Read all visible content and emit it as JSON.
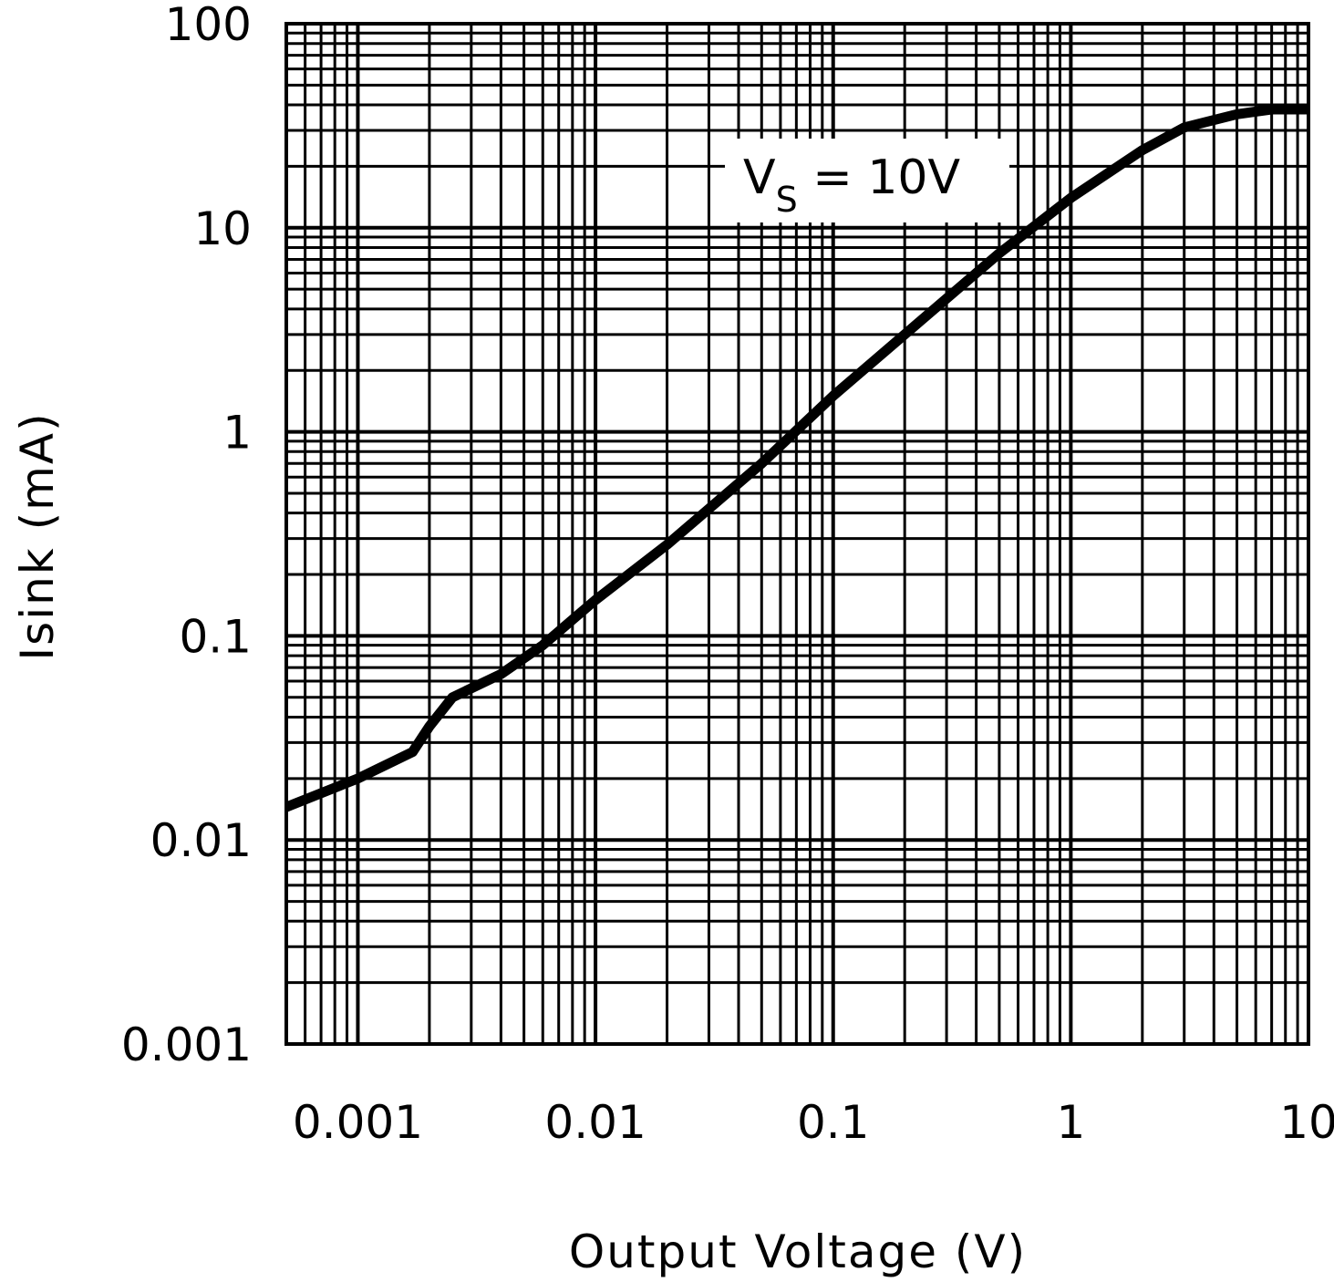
{
  "chart_data": {
    "type": "line",
    "xlabel": "Output Voltage (V)",
    "ylabel": "Isink (mA)",
    "x_scale": "log",
    "y_scale": "log",
    "xlim": [
      0.0005,
      10
    ],
    "ylim": [
      0.001,
      100
    ],
    "grid": true,
    "x_ticks": [
      "0.001",
      "0.01",
      "0.1",
      "1",
      "10"
    ],
    "y_ticks": [
      "0.001",
      "0.01",
      "0.1",
      "1",
      "10",
      "100"
    ],
    "annotation": {
      "main": "V",
      "subscript": "S",
      "rest": " = 10V"
    },
    "colors": {
      "line": "#000000",
      "grid": "#000000",
      "background": "#ffffff"
    },
    "series": [
      {
        "x": [
          0.0005,
          0.001,
          0.0017,
          0.002,
          0.0025,
          0.004,
          0.006,
          0.01,
          0.02,
          0.05,
          0.1,
          0.2,
          0.5,
          1,
          2,
          3,
          5,
          7,
          10
        ],
        "y": [
          0.0145,
          0.02,
          0.027,
          0.036,
          0.05,
          0.065,
          0.09,
          0.15,
          0.28,
          0.7,
          1.5,
          3.0,
          7.5,
          14,
          24,
          31,
          36,
          38,
          38
        ]
      }
    ]
  }
}
